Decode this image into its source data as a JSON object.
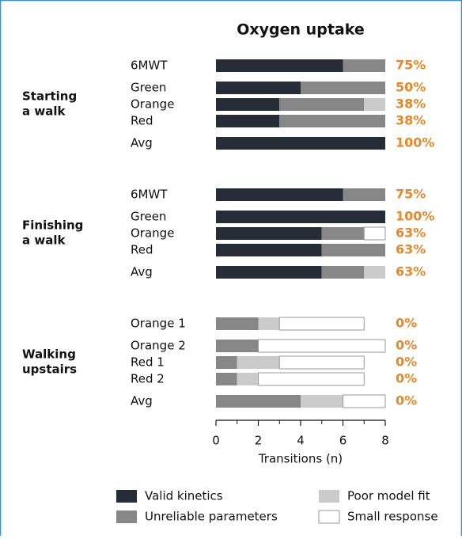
{
  "chart_data": {
    "type": "stacked-barh",
    "title": "Oxygen uptake",
    "xlabel": "Transitions (n)",
    "xlim": [
      0,
      8
    ],
    "xticks": [
      0,
      2,
      4,
      6,
      8
    ],
    "groups": [
      {
        "label": [
          "Starting",
          "a walk"
        ],
        "categories": [
          "6MWT",
          "Green",
          "Orange",
          "Red",
          "Avg"
        ]
      },
      {
        "label": [
          "Finishing",
          "a walk"
        ],
        "categories": [
          "6MWT",
          "Green",
          "Orange",
          "Red",
          "Avg"
        ]
      },
      {
        "label": [
          "Walking",
          "upstairs"
        ],
        "categories": [
          "Orange 1",
          "Orange 2",
          "Red 1",
          "Red 2",
          "Avg"
        ]
      }
    ],
    "series": [
      {
        "name": "Valid kinetics",
        "color": "#262d36",
        "values": [
          6,
          4,
          3,
          3,
          8,
          6,
          8,
          5,
          5,
          5,
          0,
          0,
          0,
          0,
          0
        ]
      },
      {
        "name": "Unreliable parameters",
        "color": "#878787",
        "values": [
          2,
          4,
          4,
          5,
          0,
          2,
          0,
          2,
          3,
          2,
          2,
          2,
          1,
          1,
          4
        ]
      },
      {
        "name": "Poor model fit",
        "color": "#cbcbcb",
        "values": [
          0,
          0,
          1,
          0,
          0,
          0,
          0,
          0,
          0,
          1,
          1,
          0,
          2,
          1,
          2
        ]
      },
      {
        "name": "Small response",
        "color": "#ffffff",
        "values": [
          0,
          0,
          0,
          0,
          0,
          0,
          0,
          1,
          0,
          0,
          4,
          6,
          4,
          5,
          2
        ]
      }
    ],
    "valid_percent": {
      "values": [
        75,
        50,
        38,
        38,
        100,
        75,
        100,
        63,
        63,
        63,
        0,
        0,
        0,
        0,
        0
      ],
      "value_labels": [
        "75%",
        "50%",
        "38%",
        "38%",
        "100%",
        "75%",
        "100%",
        "63%",
        "63%",
        "63%",
        "0%",
        "0%",
        "0%",
        "0%",
        "0%"
      ],
      "color": "#e8872a"
    },
    "legend": "bottom"
  }
}
